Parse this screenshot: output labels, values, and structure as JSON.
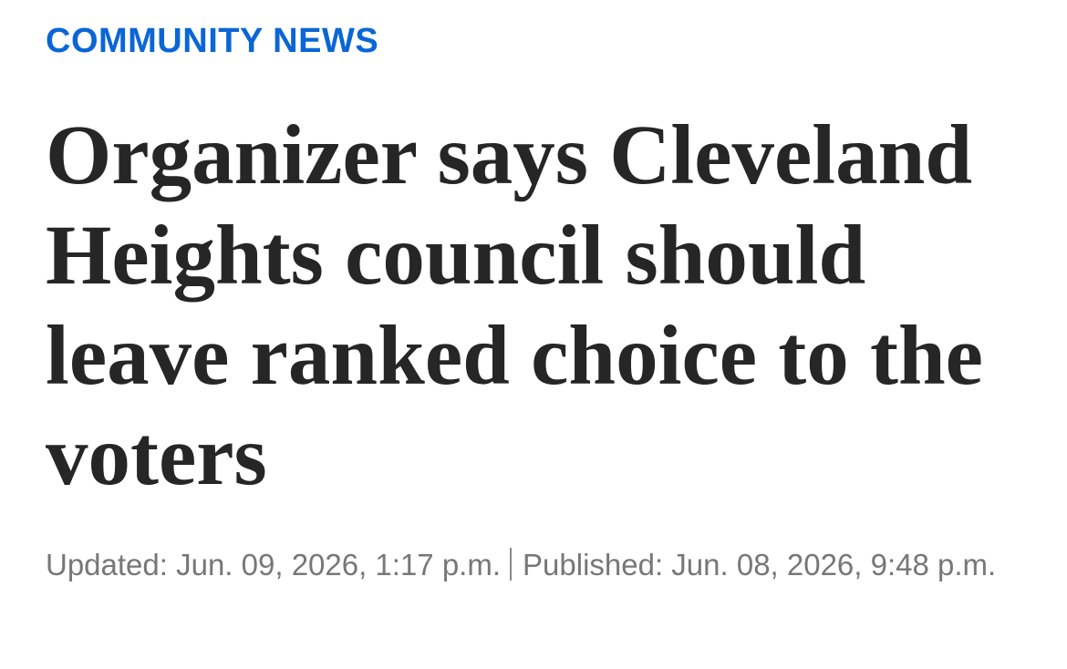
{
  "section": "COMMUNITY NEWS",
  "headline": "Organizer says Cleveland Heights council should leave ranked choice to the voters",
  "timestamps": {
    "updated": "Updated: Jun. 09, 2026, 1:17 p.m.",
    "published": "Published: Jun. 08, 2026, 9:48 p.m."
  }
}
